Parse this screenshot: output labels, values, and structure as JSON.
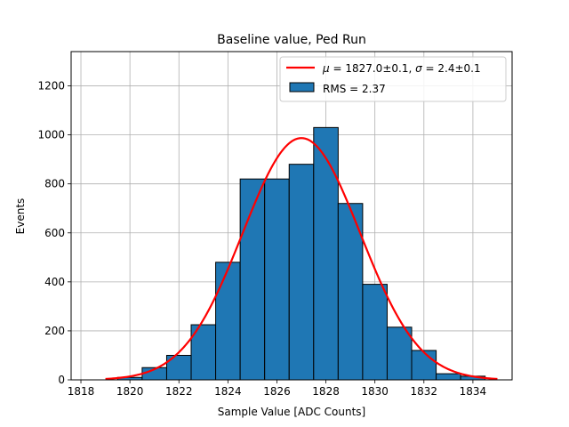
{
  "chart_data": {
    "type": "bar",
    "title": "Baseline value, Ped Run",
    "xlabel": "Sample Value [ADC Counts]",
    "ylabel": "Events",
    "xlim": [
      1817.6,
      1835.6
    ],
    "ylim": [
      0,
      1340
    ],
    "xticks": [
      1818,
      1820,
      1822,
      1824,
      1826,
      1828,
      1830,
      1832,
      1834
    ],
    "yticks": [
      0,
      200,
      400,
      600,
      800,
      1000,
      1200
    ],
    "grid": true,
    "legend_position": "top-right",
    "histogram": {
      "name": "RMS = 2.37",
      "color": "#1f77b4",
      "edgecolor": "#000000",
      "bin_edges": [
        1819.5,
        1820.5,
        1821.5,
        1822.5,
        1823.5,
        1824.5,
        1825.5,
        1826.5,
        1827.5,
        1828.5,
        1829.5,
        1830.5,
        1831.5,
        1832.5,
        1833.5,
        1834.5
      ],
      "counts": [
        10,
        50,
        100,
        225,
        480,
        820,
        820,
        880,
        1030,
        720,
        390,
        215,
        120,
        25,
        15
      ]
    },
    "fit": {
      "name_prefix_mu": "μ",
      "name_rest": " = 1827.0±0.1, ",
      "name_prefix_sigma": "σ",
      "name_tail": " = 2.4±0.1",
      "color": "#ff0000",
      "mu": 1827.0,
      "sigma": 2.4,
      "amplitude": 987,
      "x_range": [
        1819,
        1835
      ]
    }
  }
}
